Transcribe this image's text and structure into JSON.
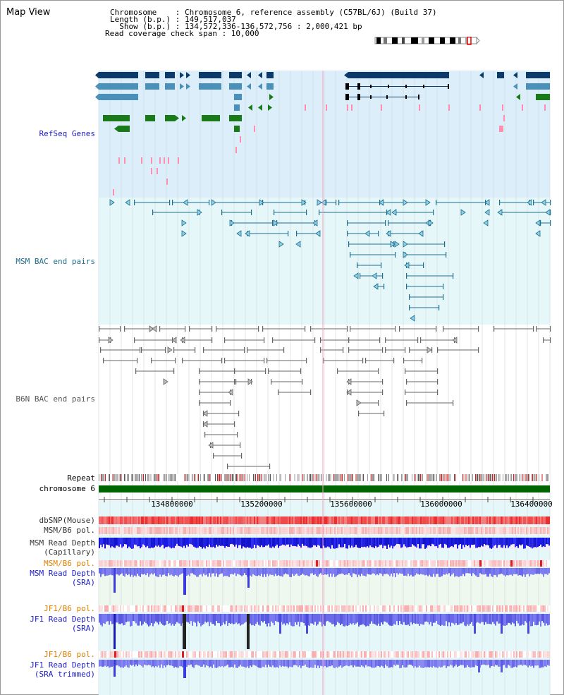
{
  "title": "Map View",
  "info": {
    "chromosome": "Chromosome    : Chromosome 6, reference assembly (C57BL/6J) (Build 37)",
    "length": "Length (b.p.) : 149,517,037",
    "show": "  Show (b.p.) : 134,572,336-136,572,756 : 2,000,421 bp",
    "coverage": "Read coverage check span : 10,000"
  },
  "tracks": {
    "refseq": "RefSeq Genes",
    "msm_bac": "MSM BAC end pairs",
    "b6n_bac": "B6N BAC end pairs",
    "repeat": "Repeat",
    "chromosome": "chromosome 6",
    "dbsnp": "dbSNP(Mouse)",
    "msm_b6_pol1": "MSM/B6 pol.",
    "msm_depth_cap_1": "MSM Read Depth",
    "msm_depth_cap_2": "(Capillary)",
    "msm_b6_pol2": "MSM/B6 pol.",
    "msm_depth_sra_1": "MSM Read Depth",
    "msm_depth_sra_2": "(SRA)",
    "jf1_b6_pol1": "JF1/B6 pol.",
    "jf1_depth_sra_1": "JF1 Read Depth",
    "jf1_depth_sra_2": "(SRA)",
    "jf1_b6_pol2": "JF1/B6 pol.",
    "jf1_depth_trim_1": "JF1 Read Depth",
    "jf1_depth_trim_2": "(SRA trimmed)"
  },
  "axis": {
    "ticks": [
      "134800000",
      "135200000",
      "135600000",
      "136000000",
      "136400000"
    ]
  },
  "colors": {
    "refseq_bg": "#dbeef9",
    "msm_bg": "#e6f7fa",
    "gene_dark": "#0b3a6b",
    "gene_mid": "#4a90b8",
    "gene_green": "#1a7a1a",
    "chrom_bar": "#006400",
    "depth_blue": "#1a1ae6",
    "depth_light": "#7a7af0"
  }
}
